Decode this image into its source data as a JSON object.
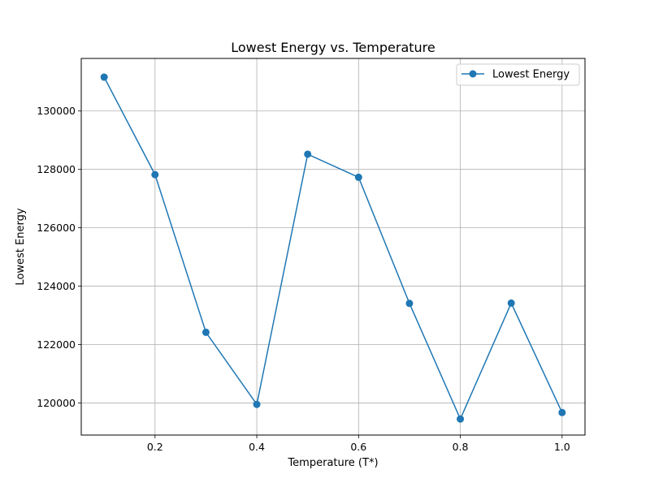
{
  "chart_data": {
    "type": "line",
    "title": "Lowest Energy vs. Temperature",
    "xlabel": "Temperature (T*)",
    "ylabel": "Lowest Energy",
    "xlim": [
      0.055,
      1.045
    ],
    "ylim": [
      118900,
      131800
    ],
    "xticks": [
      0.2,
      0.4,
      0.6,
      0.8,
      1.0
    ],
    "xtick_labels": [
      "0.2",
      "0.4",
      "0.6",
      "0.8",
      "1.0"
    ],
    "yticks": [
      120000,
      122000,
      124000,
      126000,
      128000,
      130000
    ],
    "ytick_labels": [
      "120000",
      "122000",
      "124000",
      "126000",
      "128000",
      "130000"
    ],
    "grid": true,
    "legend_position": "top-right",
    "series": [
      {
        "name": "Lowest Energy",
        "color": "#1f77b4",
        "marker": "circle",
        "x": [
          0.1,
          0.2,
          0.3,
          0.4,
          0.5,
          0.6,
          0.7,
          0.8,
          0.9,
          1.0
        ],
        "y": [
          131160,
          127820,
          122420,
          119950,
          128520,
          127730,
          123410,
          119450,
          123420,
          119670
        ]
      }
    ]
  }
}
